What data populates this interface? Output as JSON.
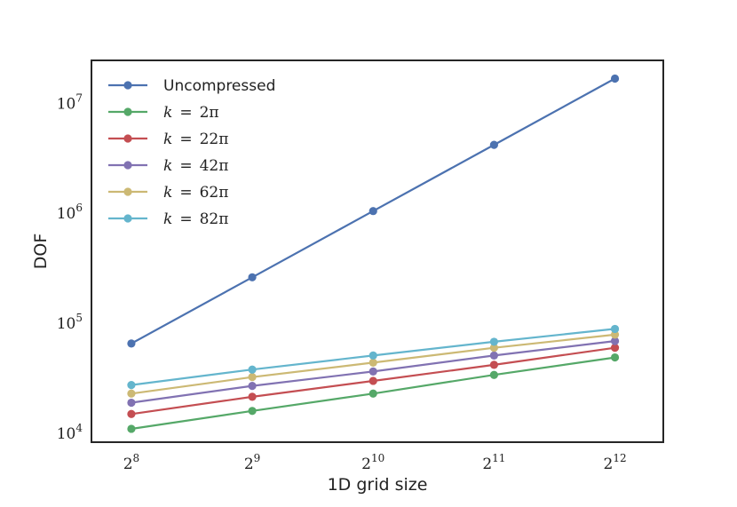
{
  "chart_data": {
    "type": "line",
    "title": "",
    "xlabel": "1D grid size",
    "ylabel": "DOF",
    "x_scale": "log2",
    "y_scale": "log10",
    "x": [
      256,
      512,
      1024,
      2048,
      4096
    ],
    "x_ticks": [
      {
        "base": "2",
        "exp": "8"
      },
      {
        "base": "2",
        "exp": "9"
      },
      {
        "base": "2",
        "exp": "10"
      },
      {
        "base": "2",
        "exp": "11"
      },
      {
        "base": "2",
        "exp": "12"
      }
    ],
    "y_ticks": [
      {
        "base": "10",
        "exp": "4",
        "value": 10000
      },
      {
        "base": "10",
        "exp": "5",
        "value": 100000
      },
      {
        "base": "10",
        "exp": "6",
        "value": 1000000
      },
      {
        "base": "10",
        "exp": "7",
        "value": 10000000
      }
    ],
    "xlim_log2": [
      7.67,
      12.4
    ],
    "ylim_log10": [
      3.92,
      7.39
    ],
    "grid": false,
    "legend_position": "top-left",
    "series": [
      {
        "name": "Uncompressed",
        "label": {
          "text": "Uncompressed",
          "math": false
        },
        "color": "#4c72b0",
        "values": [
          65536,
          262144,
          1048576,
          4194304,
          16777216
        ]
      },
      {
        "name": "k = 2π",
        "label": {
          "lhs": "k",
          "eq": "=",
          "rhs": "2π",
          "math": true
        },
        "color": "#55a868",
        "values": [
          11000,
          16000,
          23000,
          34000,
          49000
        ]
      },
      {
        "name": "k = 22π",
        "label": {
          "lhs": "k",
          "eq": "=",
          "rhs": "22π",
          "math": true
        },
        "color": "#c44e52",
        "values": [
          15000,
          21500,
          30000,
          42000,
          60000
        ]
      },
      {
        "name": "k = 42π",
        "label": {
          "lhs": "k",
          "eq": "=",
          "rhs": "42π",
          "math": true
        },
        "color": "#8172b2",
        "values": [
          19000,
          27000,
          36500,
          51000,
          69000
        ]
      },
      {
        "name": "k = 62π",
        "label": {
          "lhs": "k",
          "eq": "=",
          "rhs": "62π",
          "math": true
        },
        "color": "#ccb974",
        "values": [
          23000,
          32500,
          44000,
          60000,
          79000
        ]
      },
      {
        "name": "k = 82π",
        "label": {
          "lhs": "k",
          "eq": "=",
          "rhs": "82π",
          "math": true
        },
        "color": "#64b5cd",
        "values": [
          27500,
          38000,
          51000,
          68000,
          89000
        ]
      }
    ]
  }
}
